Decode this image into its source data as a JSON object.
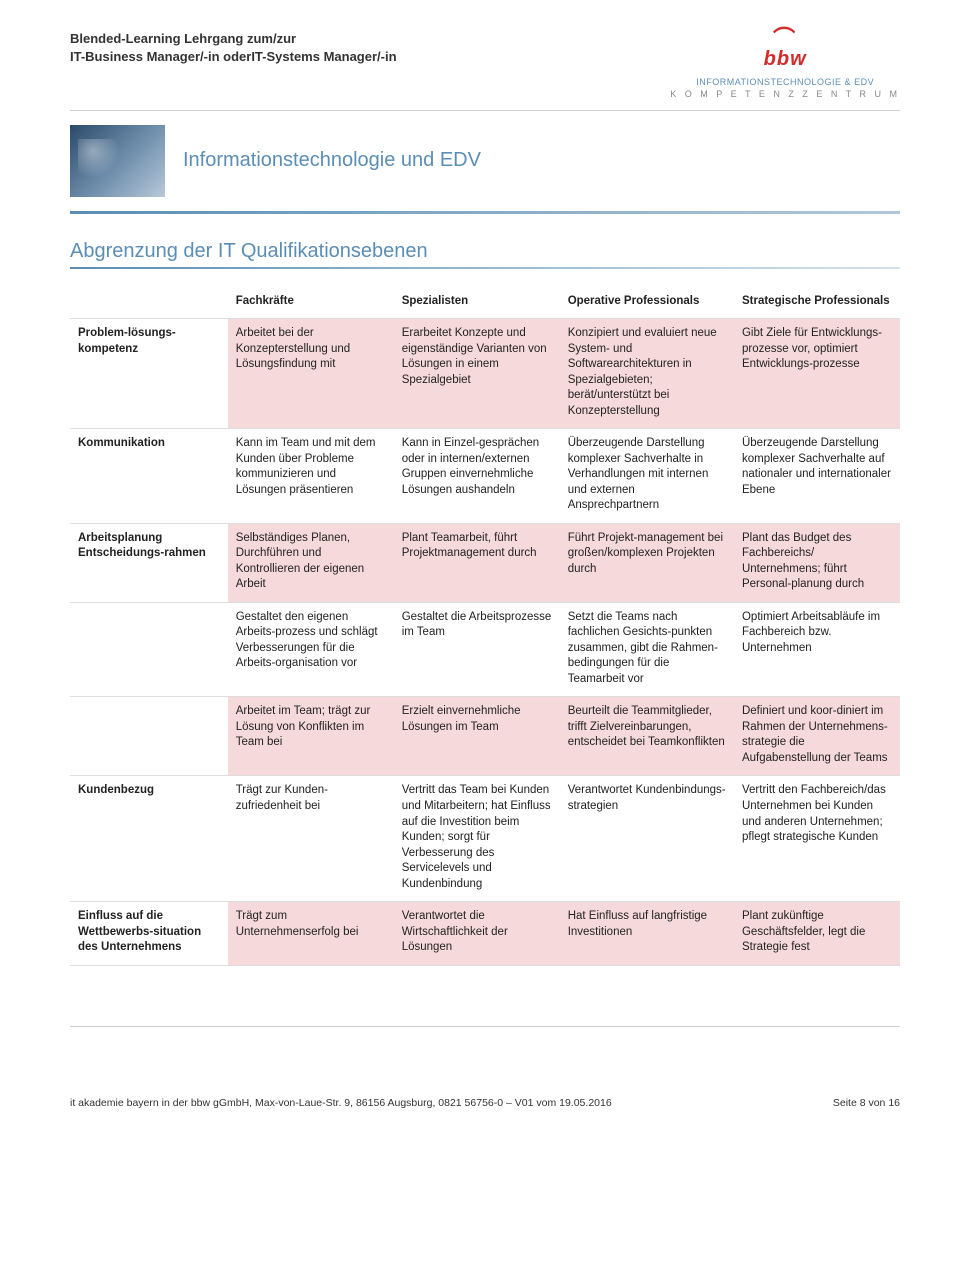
{
  "header": {
    "line1": "Blended-Learning Lehrgang zum/zur",
    "line2": "IT-Business Manager/-in  oderIT-Systems Manager/-in"
  },
  "logo": {
    "brand": "bbw",
    "sub1": "INFORMATIONSTECHNOLOGIE & EDV",
    "sub2": "K O M P E T E N Z Z E N T R U M"
  },
  "banner_title": "Informationstechnologie und EDV",
  "section_title": "Abgrenzung der IT Qualifikationsebenen",
  "columns": [
    "",
    "Fachkräfte",
    "Spezialisten",
    "Operative Professionals",
    "Strategische Professionals"
  ],
  "rows": [
    {
      "label": "Problem-lösungs-kompetenz",
      "cells": [
        "Arbeitet bei der Konzepterstellung und Lösungsfindung mit",
        "Erarbeitet Konzepte und eigenständige Varianten von Lösungen in einem Spezialgebiet",
        "Konzipiert und evaluiert neue System- und Softwarearchitekturen in Spezialgebieten; berät/unterstützt bei Konzepterstellung",
        "Gibt Ziele für Entwicklungs-prozesse vor, optimiert Entwicklungs-prozesse"
      ],
      "pink": true
    },
    {
      "label": "Kommunikation",
      "cells": [
        "Kann im Team und mit dem Kunden über Probleme kommunizieren und Lösungen präsentieren",
        "Kann in Einzel-gesprächen oder in internen/externen Gruppen einvernehmliche Lösungen aushandeln",
        "Überzeugende Darstellung komplexer Sachverhalte in Verhandlungen mit internen und externen Ansprechpartnern",
        "Überzeugende Darstellung komplexer Sachverhalte auf nationaler und internationaler Ebene"
      ],
      "pink": false
    },
    {
      "label": "Arbeitsplanung Entscheidungs-rahmen",
      "cells": [
        "Selbständiges Planen, Durchführen und Kontrollieren der eigenen Arbeit",
        "Plant Teamarbeit, führt Projektmanagement durch",
        "Führt Projekt-management bei großen/komplexen Projekten durch",
        "Plant das Budget des Fachbereichs/ Unternehmens; führt Personal-planung durch"
      ],
      "pink": true
    },
    {
      "label": "",
      "cells": [
        "Gestaltet den eigenen Arbeits-prozess und schlägt Verbesserungen für die Arbeits-organisation vor",
        "Gestaltet die Arbeitsprozesse im Team",
        "Setzt die Teams nach fachlichen Gesichts-punkten zusammen, gibt die Rahmen-bedingungen für die Teamarbeit vor",
        "Optimiert Arbeitsabläufe im Fachbereich bzw. Unternehmen"
      ],
      "pink": false
    },
    {
      "label": "",
      "cells": [
        "Arbeitet im Team; trägt zur Lösung von Konflikten im Team bei",
        "Erzielt einvernehmliche Lösungen im Team",
        "Beurteilt die Teammitglieder, trifft Zielvereinbarungen, entscheidet bei Teamkonflikten",
        "Definiert und koor-diniert im Rahmen der Unternehmens-strategie die Aufgabenstellung der Teams"
      ],
      "pink": true
    },
    {
      "label": "Kundenbezug",
      "cells": [
        "Trägt zur Kunden-zufriedenheit bei",
        "Vertritt das Team bei Kunden und Mitarbeitern; hat Einfluss auf die Investition beim Kunden; sorgt für Verbesserung des Servicelevels und Kundenbindung",
        "Verantwortet Kundenbindungs-strategien",
        "Vertritt den Fachbereich/das Unternehmen bei Kunden und anderen Unternehmen; pflegt strategische Kunden"
      ],
      "pink": false
    },
    {
      "label": "Einfluss auf die Wettbewerbs-situation des Unternehmens",
      "cells": [
        "Trägt zum Unternehmenserfolg bei",
        "Verantwortet die Wirtschaftlichkeit der Lösungen",
        "Hat Einfluss auf langfristige Investitionen",
        "Plant zukünftige Geschäftsfelder, legt die Strategie fest"
      ],
      "pink": true
    }
  ],
  "footer": {
    "left": "it akademie bayern in der bbw gGmbH, Max-von-Laue-Str. 9, 86156 Augsburg, 0821 56756-0 – V01 vom 19.05.2016",
    "right": "Seite 8 von 16"
  }
}
